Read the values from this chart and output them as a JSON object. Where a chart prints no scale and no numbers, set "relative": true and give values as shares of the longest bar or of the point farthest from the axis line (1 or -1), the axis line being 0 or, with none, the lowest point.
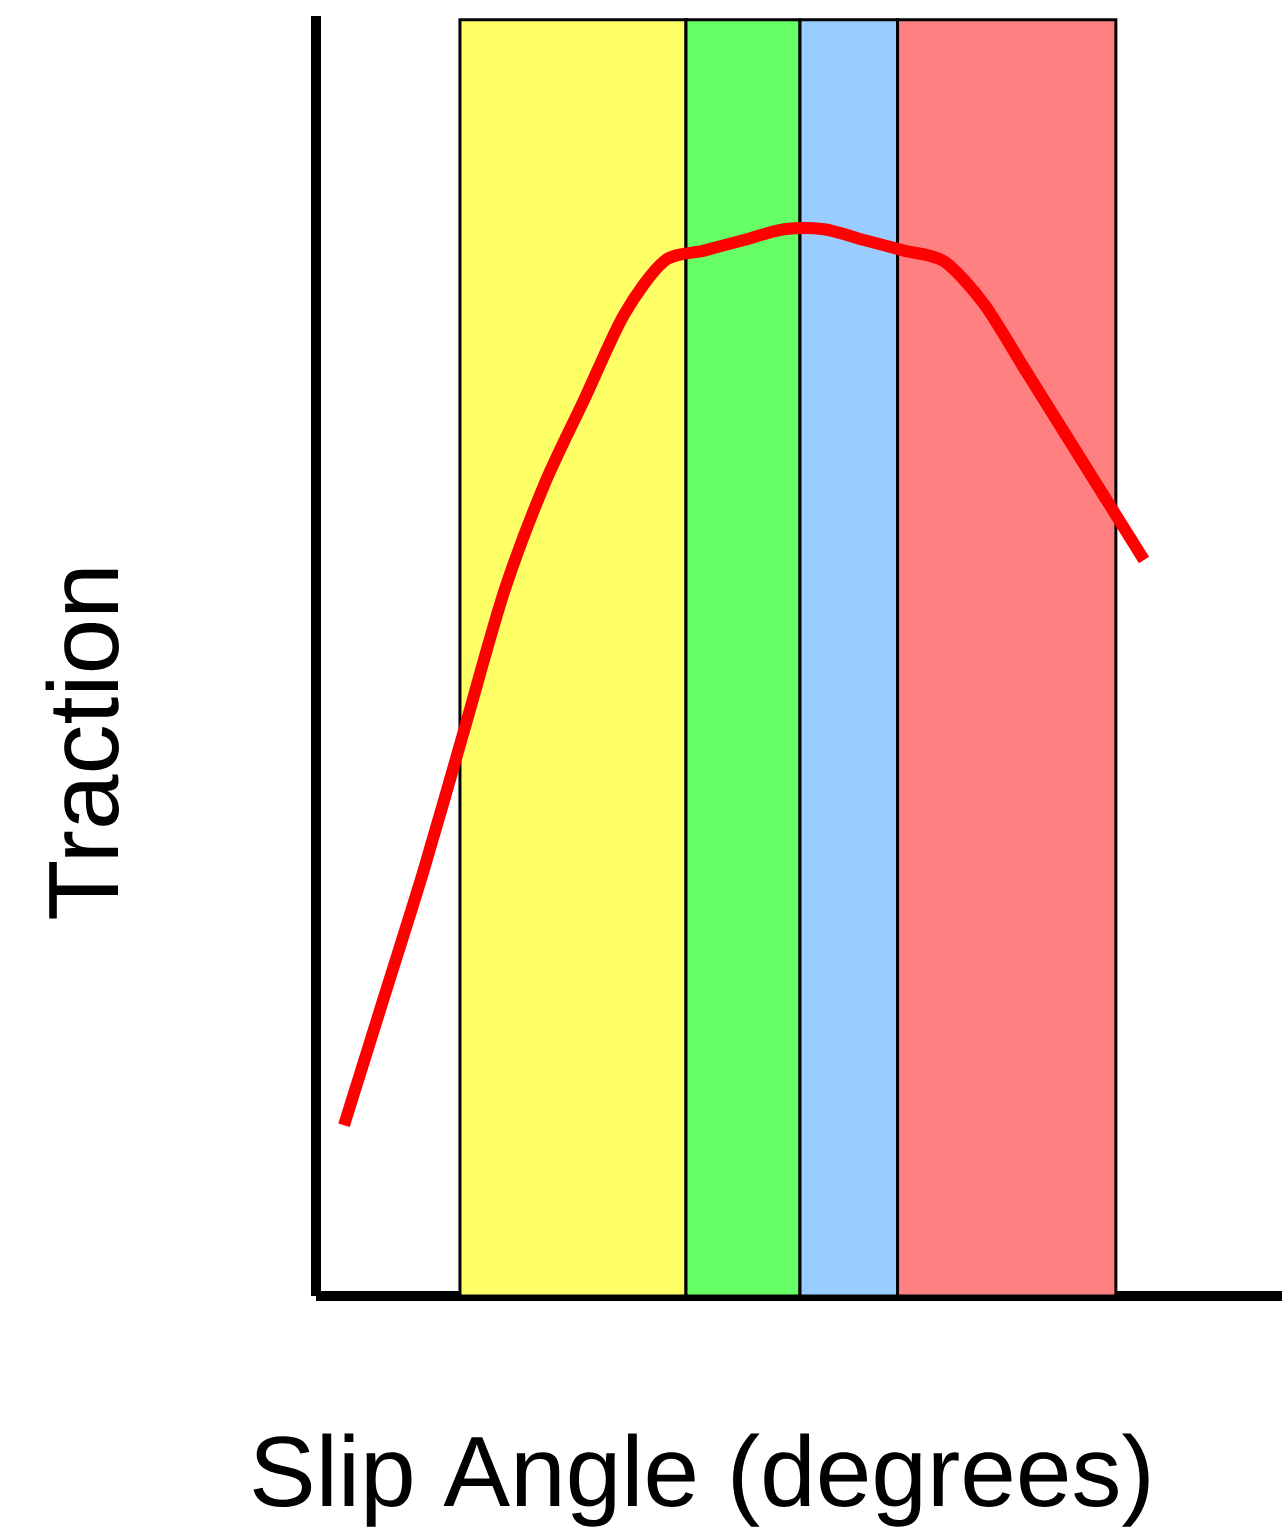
{
  "chart_data": {
    "type": "line",
    "relative": true,
    "xlabel": "Slip Angle (degrees)",
    "ylabel": "Traction",
    "categories": [
      null,
      null,
      null,
      null,
      null,
      null,
      null,
      null,
      null,
      null,
      null,
      null,
      null,
      null,
      null,
      null,
      null,
      null,
      null,
      null,
      null
    ],
    "series": [
      {
        "color": "#ff0000",
        "values": [
          0.16,
          0.28,
          0.4,
          0.53,
          0.66,
          0.76,
          0.84,
          0.92,
          0.97,
          0.98,
          0.99,
          1.0,
          1.0,
          0.99,
          0.98,
          0.97,
          0.93,
          0.87,
          0.81,
          0.75,
          0.69
        ]
      }
    ]
  }
}
